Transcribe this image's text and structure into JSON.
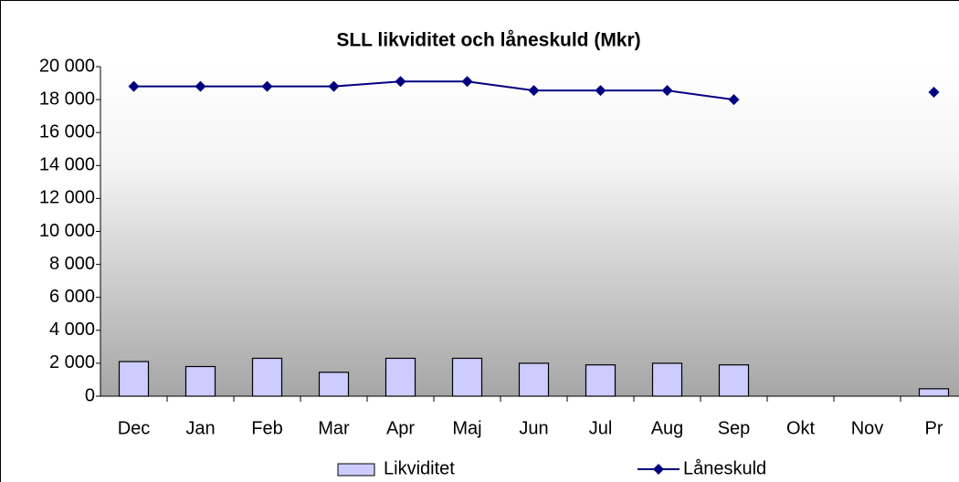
{
  "chart_data": {
    "type": "bar-line",
    "title": "SLL likviditet och låneskuld (Mkr)",
    "categories": [
      "Dec",
      "Jan",
      "Feb",
      "Mar",
      "Apr",
      "Maj",
      "Jun",
      "Jul",
      "Aug",
      "Sep",
      "Okt",
      "Nov",
      "Pr"
    ],
    "series": [
      {
        "name": "Likviditet",
        "type": "bar",
        "color": "#ccccff",
        "values": [
          2100,
          1800,
          2300,
          1450,
          2300,
          2300,
          2000,
          1900,
          2000,
          1900,
          null,
          null,
          450
        ]
      },
      {
        "name": "Låneskuld",
        "type": "line",
        "color": "#000080",
        "values": [
          18800,
          18800,
          18800,
          18800,
          19100,
          19100,
          18550,
          18550,
          18550,
          18000,
          null,
          null,
          18450
        ]
      }
    ],
    "ylim": [
      0,
      20000
    ],
    "yticks": [
      0,
      {
        "value": 2000,
        "label": "2 000"
      },
      {
        "value": 4000,
        "label": "4 000"
      },
      {
        "value": 6000,
        "label": "6 000"
      },
      {
        "value": 8000,
        "label": "8 000"
      },
      {
        "value": 10000,
        "label": "10 000"
      },
      {
        "value": 12000,
        "label": "12 000"
      },
      {
        "value": 14000,
        "label": "14 000"
      },
      {
        "value": 16000,
        "label": "16 000"
      },
      {
        "value": 18000,
        "label": "18 000"
      },
      {
        "value": 20000,
        "label": "20 000"
      }
    ],
    "legend": "bottom"
  }
}
